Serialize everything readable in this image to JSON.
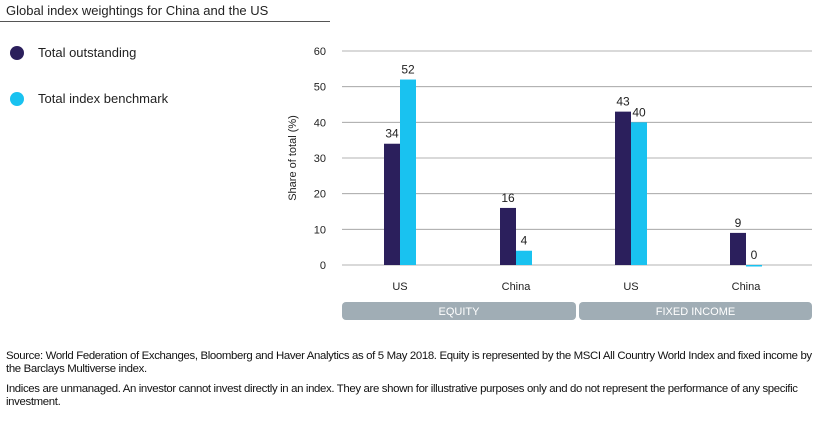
{
  "title": "Global index weightings for China and the US",
  "legend": [
    {
      "label": "Total outstanding",
      "color": "#2b1f5c"
    },
    {
      "label": "Total index benchmark",
      "color": "#19c2f0"
    }
  ],
  "chart_data": {
    "type": "bar",
    "ylabel": "Share of total (%)",
    "ylim": [
      0,
      60
    ],
    "yticks": [
      0,
      10,
      20,
      30,
      40,
      50,
      60
    ],
    "categories": [
      "US",
      "China",
      "US",
      "China"
    ],
    "groups": [
      {
        "label": "EQUITY",
        "categories": [
          0,
          1
        ]
      },
      {
        "label": "FIXED INCOME",
        "categories": [
          2,
          3
        ]
      }
    ],
    "series": [
      {
        "name": "Total outstanding",
        "color": "#2b1f5c",
        "values": [
          34,
          16,
          43,
          9
        ]
      },
      {
        "name": "Total index benchmark",
        "color": "#19c2f0",
        "values": [
          52,
          4,
          40,
          0
        ]
      }
    ],
    "data_labels": [
      [
        "34",
        "16",
        "43",
        "9"
      ],
      [
        "52",
        "4",
        "40",
        "0"
      ]
    ],
    "group_bar_color": "#a0adb5",
    "grid": true
  },
  "footnotes": {
    "source": "Source: World Federation of Exchanges, Bloomberg and Haver Analytics as of 5 May 2018. Equity is represented by the MSCI All Country World Index and fixed income by the Barclays Multiverse index.",
    "disclaimer": "Indices are unmanaged. An investor cannot invest directly in an index. They are shown for illustrative purposes only and do not represent the performance of any specific investment."
  }
}
